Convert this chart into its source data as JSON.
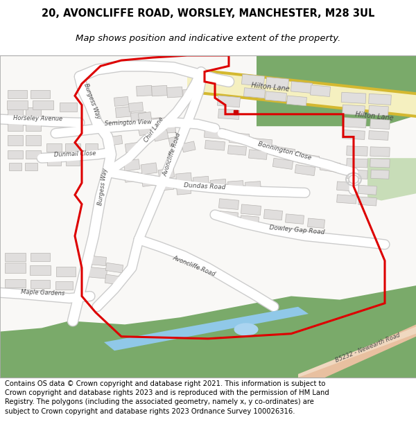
{
  "title_line1": "20, AVONCLIFFE ROAD, WORSLEY, MANCHESTER, M28 3UL",
  "title_line2": "Map shows position and indicative extent of the property.",
  "footer_text": "Contains OS data © Crown copyright and database right 2021. This information is subject to Crown copyright and database rights 2023 and is reproduced with the permission of HM Land Registry. The polygons (including the associated geometry, namely x, y co-ordinates) are subject to Crown copyright and database rights 2023 Ordnance Survey 100026316.",
  "map_bg": "#f9f8f6",
  "green_color": "#7aaa6a",
  "green_light": "#c8ddb8",
  "water_color": "#aad4f0",
  "canal_color": "#90c8e8",
  "road_yellow": "#f5f0c0",
  "road_yellow_border": "#d4b830",
  "road_white": "#ffffff",
  "road_grey_border": "#cccccc",
  "building_fill": "#e0dedd",
  "building_edge": "#b8b5b2",
  "red_line": "#dd0000",
  "marker_red": "#cc0000",
  "text_color": "#4a4a4a",
  "title_fontsize": 10.5,
  "subtitle_fontsize": 9.5,
  "footer_fontsize": 7.2,
  "fig_width": 6.0,
  "fig_height": 6.25
}
